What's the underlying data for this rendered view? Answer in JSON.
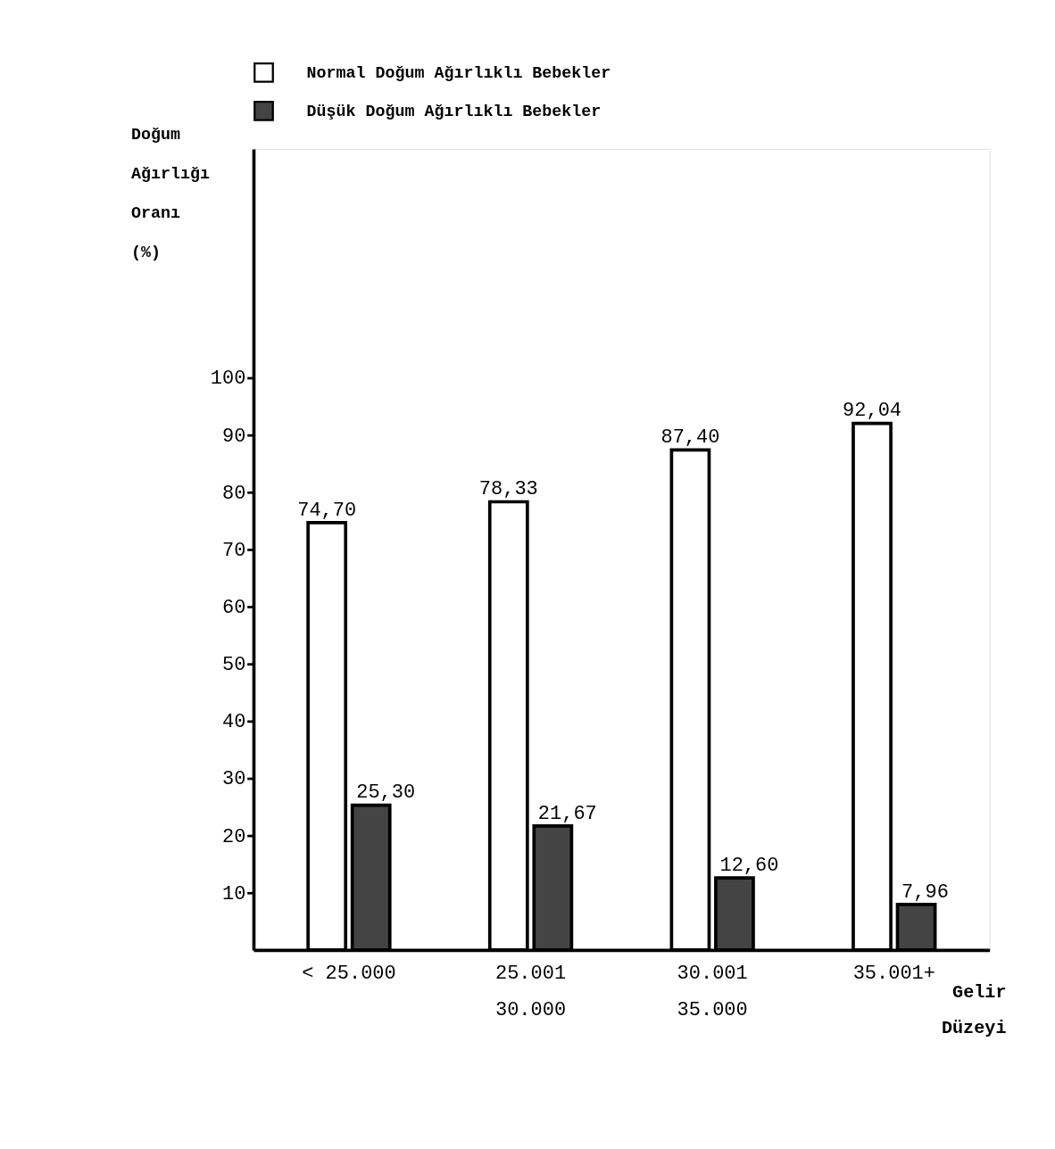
{
  "chart_data": {
    "type": "bar",
    "categories": [
      "< 25.000",
      "25.001\n30.000",
      "30.001\n35.000",
      "35.001+"
    ],
    "xlabel": "Gelir Düzeyi",
    "ylabel": "Doğum Ağırlığı Oranı (%)",
    "series": [
      {
        "name": "Normal Doğum Ağırlıklı Bebekler",
        "color": "#ffffff",
        "values": [
          74.7,
          78.33,
          87.4,
          92.04
        ],
        "value_labels": [
          "74,70",
          "78,33",
          "87,40",
          "92,04"
        ]
      },
      {
        "name": "Düşük Doğum Ağırlıklı Bebekler",
        "color": "#444444",
        "values": [
          25.3,
          21.67,
          12.6,
          7.96
        ],
        "value_labels": [
          "25,30",
          "21,67",
          "12,60",
          "7,96"
        ]
      }
    ],
    "ylim": [
      0,
      140
    ],
    "yticks": [
      10,
      20,
      30,
      40,
      50,
      60,
      70,
      80,
      90,
      100
    ],
    "grid": false,
    "legend": "top"
  }
}
